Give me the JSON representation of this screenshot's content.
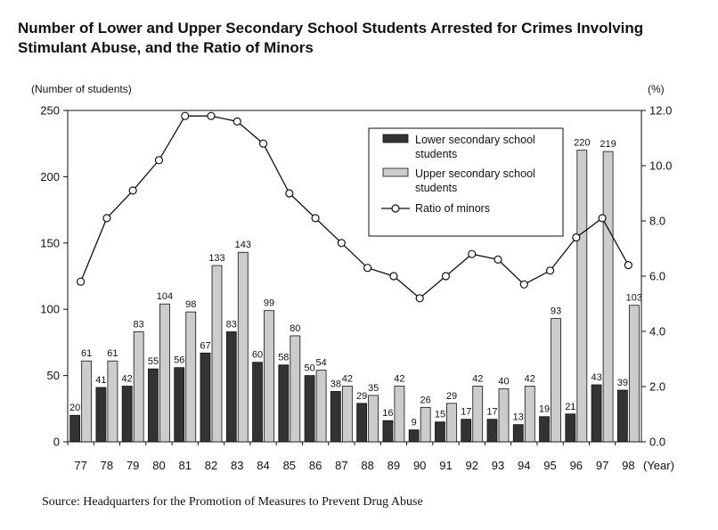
{
  "chart_data": {
    "type": "bar",
    "title": "Number of Lower and Upper Secondary School Students Arrested for Crimes Involving Stimulant Abuse, and the Ratio of Minors",
    "ylabel_left": "(Number of students)",
    "ylabel_right": "(%)",
    "xlabel": "(Year)",
    "ylim_left": [
      0,
      250
    ],
    "yticks_left": [
      "0",
      "50",
      "100",
      "150",
      "200",
      "250"
    ],
    "ylim_right": [
      0,
      12
    ],
    "yticks_right": [
      "0.0",
      "2.0",
      "4.0",
      "6.0",
      "8.0",
      "10.0",
      "12.0"
    ],
    "categories": [
      "77",
      "78",
      "79",
      "80",
      "81",
      "82",
      "83",
      "84",
      "85",
      "86",
      "87",
      "88",
      "89",
      "90",
      "91",
      "92",
      "93",
      "94",
      "95",
      "96",
      "97",
      "98"
    ],
    "series": [
      {
        "name": "Lower secondary school students",
        "kind": "bar",
        "color": "#333333",
        "values": [
          20,
          41,
          42,
          55,
          56,
          67,
          83,
          60,
          58,
          50,
          38,
          29,
          16,
          9,
          15,
          17,
          17,
          13,
          19,
          21,
          43,
          39
        ]
      },
      {
        "name": "Upper secondary school students",
        "kind": "bar",
        "color": "#cccccc",
        "values": [
          61,
          61,
          83,
          104,
          98,
          133,
          143,
          99,
          80,
          54,
          42,
          35,
          42,
          26,
          29,
          42,
          40,
          42,
          93,
          220,
          219,
          103
        ]
      },
      {
        "name": "Ratio of minors",
        "kind": "line",
        "axis": "right",
        "color": "#111111",
        "values": [
          5.8,
          8.1,
          9.1,
          10.2,
          11.8,
          11.8,
          11.6,
          10.8,
          9.0,
          8.1,
          7.2,
          6.3,
          6.0,
          5.2,
          6.0,
          6.8,
          6.6,
          5.7,
          6.2,
          7.4,
          8.1,
          6.4
        ]
      }
    ],
    "legend_position": "top-right",
    "grid": false
  },
  "source": "Source: Headquarters for the Promotion of Measures to Prevent Drug Abuse"
}
